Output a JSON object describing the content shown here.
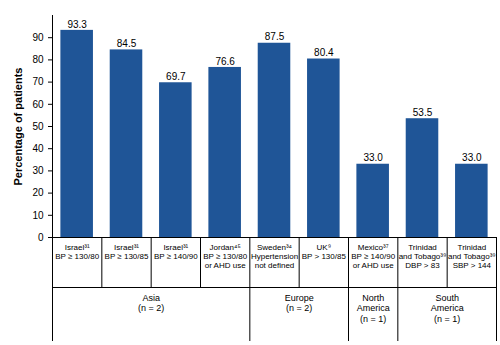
{
  "chart_data": {
    "type": "bar",
    "y_label": "Percentage of patients",
    "categories": [
      "Israel³¹\nBP ≥ 130/80",
      "Israel³¹\nBP ≥ 130/85",
      "Israel³¹\nBP ≥ 140/90",
      "Jordan⁴⁵\nBP ≥ 130/80\nor AHD use",
      "Sweden³⁴\nHypertension\nnot defined",
      "UK⁹\nBP > 130/85",
      "Mexico³⁷\nBP ≥ 140/90\nor AHD use",
      "Trinidad\nand Tobago³⁹\nDBP > 83",
      "Trinidad\nand Tobago³⁹\nSBP > 144"
    ],
    "groups": [
      "Asia\n(n = 2)",
      "Asia\n(n = 2)",
      "Asia\n(n = 2)",
      "Asia\n(n = 2)",
      "Europe\n(n = 2)",
      "Europe\n(n = 2)",
      "North\nAmerica\n(n = 1)",
      "South\nAmerica\n(n = 1)",
      "South\nAmerica\n(n = 1)"
    ],
    "values": [
      93.3,
      84.5,
      69.7,
      76.6,
      87.5,
      80.4,
      33.0,
      53.5,
      33.0
    ],
    "value_labels": [
      "93.3",
      "84.5",
      "69.7",
      "76.6",
      "87.5",
      "80.4",
      "33.0",
      "53.5",
      "33.0"
    ],
    "data_labels": true,
    "color": "#1f5597",
    "ylim": [
      0,
      100
    ],
    "yticks": [
      0,
      10,
      20,
      30,
      40,
      50,
      60,
      70,
      80,
      90
    ],
    "grid": false
  }
}
